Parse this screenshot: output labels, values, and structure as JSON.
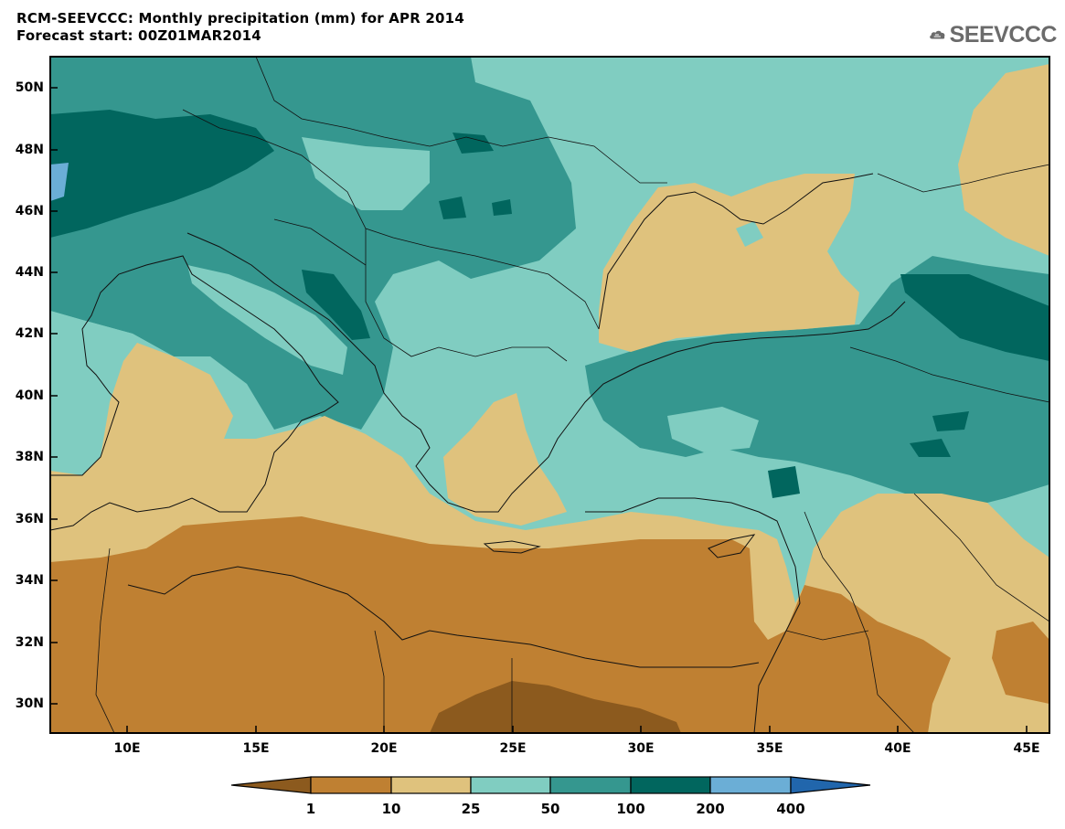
{
  "title": {
    "line1": "RCM-SEEVCCC: Monthly precipitation (mm) for APR 2014",
    "line2": "Forecast start: 00Z01MAR2014"
  },
  "logo": {
    "text": "SEEVCCC",
    "icon": "cloud-icon"
  },
  "axes": {
    "lat_labels": [
      "50N",
      "48N",
      "46N",
      "44N",
      "42N",
      "40N",
      "38N",
      "36N",
      "34N",
      "32N",
      "30N"
    ],
    "lon_labels": [
      "10E",
      "15E",
      "20E",
      "25E",
      "30E",
      "35E",
      "40E",
      "45E"
    ]
  },
  "colorbar": {
    "labels": [
      "1",
      "10",
      "25",
      "50",
      "100",
      "200",
      "400"
    ],
    "colors": [
      "#8c5a1e",
      "#bf8032",
      "#dfc27d",
      "#80cdc1",
      "#35978f",
      "#01665e",
      "#6baed6",
      "#2166ac"
    ]
  }
}
